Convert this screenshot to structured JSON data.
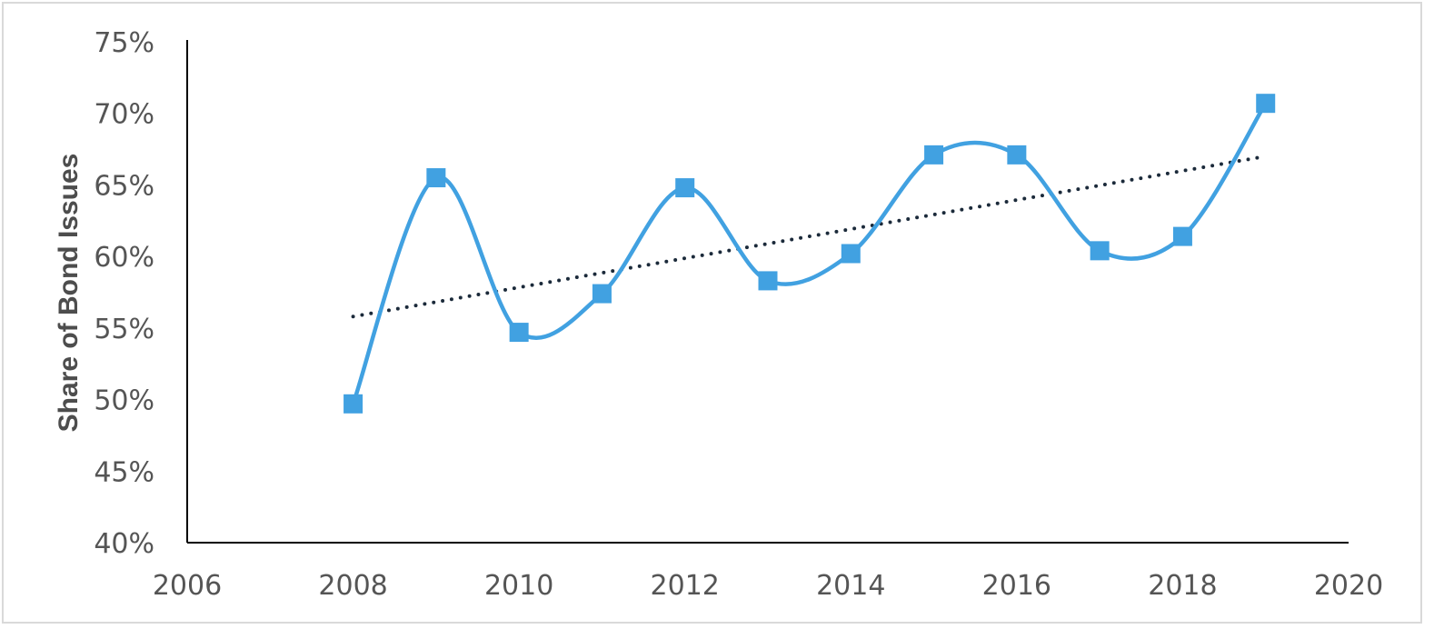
{
  "chart_data": {
    "type": "line",
    "title": "",
    "xlabel": "",
    "ylabel": "Share of Bond Issues",
    "xlim": [
      2006,
      2020
    ],
    "ylim": [
      0.4,
      0.75
    ],
    "x_ticks": [
      2006,
      2008,
      2010,
      2012,
      2014,
      2016,
      2018,
      2020
    ],
    "x_tick_labels": [
      "2006",
      "2008",
      "2010",
      "2012",
      "2014",
      "2016",
      "2018",
      "2020"
    ],
    "y_ticks": [
      0.4,
      0.45,
      0.5,
      0.55,
      0.6,
      0.65,
      0.7,
      0.75
    ],
    "y_tick_labels": [
      "40%",
      "45%",
      "50%",
      "55%",
      "60%",
      "65%",
      "70%",
      "75%"
    ],
    "grid": false,
    "legend": "none",
    "series": [
      {
        "x": [
          2008,
          2009,
          2010,
          2011,
          2012,
          2013,
          2014,
          2015,
          2016,
          2017,
          2018,
          2019
        ],
        "values": [
          0.497,
          0.655,
          0.547,
          0.574,
          0.648,
          0.583,
          0.602,
          0.671,
          0.671,
          0.604,
          0.614,
          0.707
        ],
        "color": "#41a1e1",
        "marker": "square",
        "smoothed": true
      }
    ],
    "trendline": {
      "style": "dotted",
      "color": "#1b2a3a",
      "x": [
        2008,
        2019
      ],
      "values": [
        0.558,
        0.67
      ]
    }
  }
}
